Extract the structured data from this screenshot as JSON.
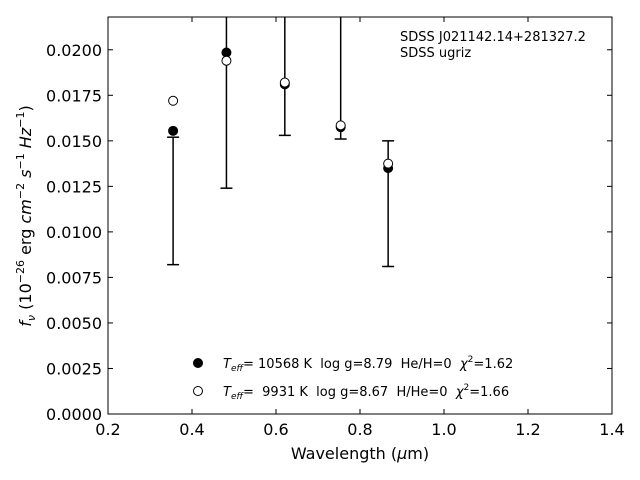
{
  "chart_data": {
    "type": "scatter",
    "title": "",
    "annotation": [
      "SDSS J021142.14+281327.2",
      "SDSS ugriz"
    ],
    "xlabel": {
      "prefix": "Wavelength (",
      "mu": "μ",
      "suffix": "m)"
    },
    "ylabel": {
      "f": "f",
      "nu": "ν",
      "rest": " (10",
      "exp1": "−26",
      "unit": " erg ",
      "cm": "cm",
      "exp2": "−2",
      "s": " s",
      "exp3": "−1",
      "hz": " Hz",
      "exp4": "−1",
      "close": ")"
    },
    "xlim": [
      0.2,
      1.4
    ],
    "ylim": [
      0.0,
      0.0218
    ],
    "xticks": [
      0.2,
      0.4,
      0.6,
      0.8,
      1.0,
      1.2,
      1.4
    ],
    "xtick_labels": [
      "0.2",
      "0.4",
      "0.6",
      "0.8",
      "1.0",
      "1.2",
      "1.4"
    ],
    "yticks": [
      0.0,
      0.0025,
      0.005,
      0.0075,
      0.01,
      0.0125,
      0.015,
      0.0175,
      0.02
    ],
    "ytick_labels": [
      "0.0000",
      "0.0025",
      "0.0050",
      "0.0075",
      "0.0100",
      "0.0125",
      "0.0150",
      "0.0175",
      "0.0200"
    ],
    "grid": false,
    "observed": [
      {
        "x": 0.355,
        "y_low": 0.0082,
        "y_high": 0.0152
      },
      {
        "x": 0.482,
        "y_low": 0.0124,
        "y_high": 0.0218
      },
      {
        "x": 0.621,
        "y_low": 0.0153,
        "y_high": 0.0218
      },
      {
        "x": 0.754,
        "y_low": 0.0151,
        "y_high": 0.0218
      },
      {
        "x": 0.867,
        "y_low": 0.0081,
        "y_high": 0.015
      }
    ],
    "series": [
      {
        "marker": "filled",
        "legend": {
          "T": "T",
          "sub": "eff",
          "text": "= 10568 K  log g=8.79  He/H=0  ",
          "chi": "χ",
          "chi_exp": "2",
          "chi_val": "=1.62"
        },
        "x": [
          0.355,
          0.482,
          0.621,
          0.754,
          0.867
        ],
        "y": [
          0.01555,
          0.01985,
          0.0181,
          0.01575,
          0.0135
        ]
      },
      {
        "marker": "open",
        "legend": {
          "T": "T",
          "sub": "eff",
          "text": "=  9931 K  log g=8.67  H/He=0  ",
          "chi": "χ",
          "chi_exp": "2",
          "chi_val": "=1.66"
        },
        "x": [
          0.355,
          0.482,
          0.621,
          0.754,
          0.867
        ],
        "y": [
          0.0172,
          0.0194,
          0.0182,
          0.01585,
          0.01375
        ]
      }
    ],
    "legend_position": "lower-center"
  }
}
